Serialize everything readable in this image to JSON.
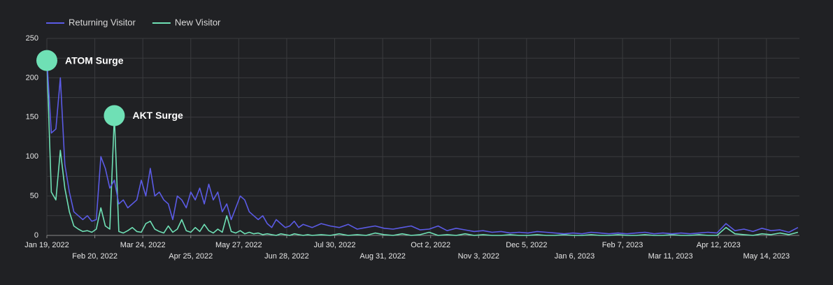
{
  "chart_data": {
    "type": "line",
    "xlim": [
      "2022-01-19",
      "2023-06-05"
    ],
    "ylim": [
      0,
      250
    ],
    "yticks": [
      0,
      50,
      100,
      150,
      200,
      250
    ],
    "ygrid": [
      0,
      25,
      50,
      75,
      100,
      125,
      150,
      175,
      200,
      225,
      250
    ],
    "grid": true,
    "legend": "top-left",
    "xticks": [
      {
        "value": "2022-01-19",
        "label": "Jan 19, 2022"
      },
      {
        "value": "2022-02-20",
        "label": "Feb 20, 2022"
      },
      {
        "value": "2022-03-24",
        "label": "Mar 24, 2022"
      },
      {
        "value": "2022-04-25",
        "label": "Apr 25, 2022"
      },
      {
        "value": "2022-05-27",
        "label": "May 27, 2022"
      },
      {
        "value": "2022-06-28",
        "label": "Jun 28, 2022"
      },
      {
        "value": "2022-07-30",
        "label": "Jul 30, 2022"
      },
      {
        "value": "2022-08-31",
        "label": "Aug 31, 2022"
      },
      {
        "value": "2022-10-02",
        "label": "Oct 2, 2022"
      },
      {
        "value": "2022-11-03",
        "label": "Nov 3, 2022"
      },
      {
        "value": "2022-12-05",
        "label": "Dec 5, 2022"
      },
      {
        "value": "2023-01-06",
        "label": "Jan 6, 2023"
      },
      {
        "value": "2023-02-07",
        "label": "Feb 7, 2023"
      },
      {
        "value": "2023-03-11",
        "label": "Mar 11, 2023"
      },
      {
        "value": "2023-04-12",
        "label": "Apr 12, 2023"
      },
      {
        "value": "2023-05-14",
        "label": "May 14, 2023"
      }
    ],
    "x": [
      "2022-01-19",
      "2022-01-22",
      "2022-01-25",
      "2022-01-28",
      "2022-01-31",
      "2022-02-03",
      "2022-02-06",
      "2022-02-09",
      "2022-02-12",
      "2022-02-15",
      "2022-02-18",
      "2022-02-21",
      "2022-02-24",
      "2022-02-27",
      "2022-03-02",
      "2022-03-05",
      "2022-03-08",
      "2022-03-11",
      "2022-03-14",
      "2022-03-17",
      "2022-03-20",
      "2022-03-23",
      "2022-03-26",
      "2022-03-29",
      "2022-04-01",
      "2022-04-04",
      "2022-04-07",
      "2022-04-10",
      "2022-04-13",
      "2022-04-16",
      "2022-04-19",
      "2022-04-22",
      "2022-04-25",
      "2022-04-28",
      "2022-05-01",
      "2022-05-04",
      "2022-05-07",
      "2022-05-10",
      "2022-05-13",
      "2022-05-16",
      "2022-05-19",
      "2022-05-22",
      "2022-05-25",
      "2022-05-28",
      "2022-05-31",
      "2022-06-03",
      "2022-06-06",
      "2022-06-09",
      "2022-06-12",
      "2022-06-15",
      "2022-06-18",
      "2022-06-21",
      "2022-06-24",
      "2022-06-27",
      "2022-06-30",
      "2022-07-03",
      "2022-07-06",
      "2022-07-09",
      "2022-07-12",
      "2022-07-15",
      "2022-07-21",
      "2022-07-27",
      "2022-08-02",
      "2022-08-08",
      "2022-08-14",
      "2022-08-20",
      "2022-08-26",
      "2022-09-01",
      "2022-09-07",
      "2022-09-13",
      "2022-09-19",
      "2022-09-25",
      "2022-10-01",
      "2022-10-07",
      "2022-10-13",
      "2022-10-19",
      "2022-10-25",
      "2022-10-31",
      "2022-11-06",
      "2022-11-12",
      "2022-11-18",
      "2022-11-24",
      "2022-11-30",
      "2022-12-06",
      "2022-12-12",
      "2022-12-18",
      "2022-12-24",
      "2022-12-30",
      "2023-01-05",
      "2023-01-11",
      "2023-01-17",
      "2023-01-23",
      "2023-01-29",
      "2023-02-04",
      "2023-02-10",
      "2023-02-16",
      "2023-02-22",
      "2023-02-28",
      "2023-03-06",
      "2023-03-12",
      "2023-03-18",
      "2023-03-24",
      "2023-03-30",
      "2023-04-05",
      "2023-04-11",
      "2023-04-17",
      "2023-04-23",
      "2023-04-29",
      "2023-05-05",
      "2023-05-11",
      "2023-05-17",
      "2023-05-23",
      "2023-05-29",
      "2023-06-04"
    ],
    "series": [
      {
        "name": "Returning Visitor",
        "color": "#5b5be6",
        "values": [
          225,
          130,
          135,
          200,
          90,
          55,
          30,
          25,
          20,
          25,
          18,
          20,
          100,
          85,
          60,
          70,
          40,
          45,
          35,
          40,
          45,
          70,
          50,
          85,
          50,
          55,
          45,
          40,
          20,
          50,
          45,
          35,
          55,
          45,
          60,
          40,
          65,
          45,
          55,
          30,
          40,
          20,
          35,
          50,
          45,
          30,
          25,
          20,
          25,
          15,
          10,
          20,
          15,
          10,
          12,
          18,
          10,
          14,
          12,
          10,
          15,
          12,
          10,
          14,
          8,
          10,
          12,
          9,
          8,
          10,
          12,
          7,
          8,
          12,
          6,
          9,
          7,
          5,
          6,
          4,
          5,
          3,
          4,
          3,
          5,
          4,
          3,
          2,
          3,
          2,
          4,
          3,
          2,
          3,
          2,
          3,
          4,
          2,
          3,
          2,
          3,
          2,
          3,
          4,
          3,
          15,
          6,
          8,
          5,
          9,
          6,
          7,
          4,
          10
        ]
      },
      {
        "name": "New Visitor",
        "color": "#6fe0b5",
        "values": [
          222,
          55,
          45,
          108,
          60,
          30,
          12,
          8,
          5,
          6,
          4,
          8,
          35,
          12,
          8,
          152,
          5,
          3,
          6,
          10,
          5,
          4,
          15,
          18,
          8,
          5,
          3,
          12,
          4,
          8,
          20,
          6,
          4,
          10,
          5,
          14,
          6,
          3,
          8,
          4,
          25,
          5,
          3,
          6,
          2,
          4,
          2,
          3,
          1,
          2,
          1,
          0,
          2,
          1,
          0,
          2,
          1,
          0,
          1,
          0,
          1,
          0,
          2,
          0,
          1,
          0,
          3,
          1,
          0,
          2,
          0,
          1,
          4,
          0,
          1,
          0,
          2,
          0,
          1,
          0,
          0,
          1,
          0,
          0,
          1,
          0,
          0,
          1,
          0,
          0,
          1,
          0,
          0,
          1,
          0,
          0,
          1,
          0,
          0,
          1,
          0,
          0,
          1,
          0,
          0,
          10,
          2,
          1,
          0,
          2,
          1,
          3,
          1,
          4
        ]
      }
    ],
    "annotations": [
      {
        "x": "2022-01-19",
        "y": 222,
        "text": "ATOM Surge"
      },
      {
        "x": "2022-03-05",
        "y": 152,
        "text": "AKT Surge"
      }
    ]
  }
}
